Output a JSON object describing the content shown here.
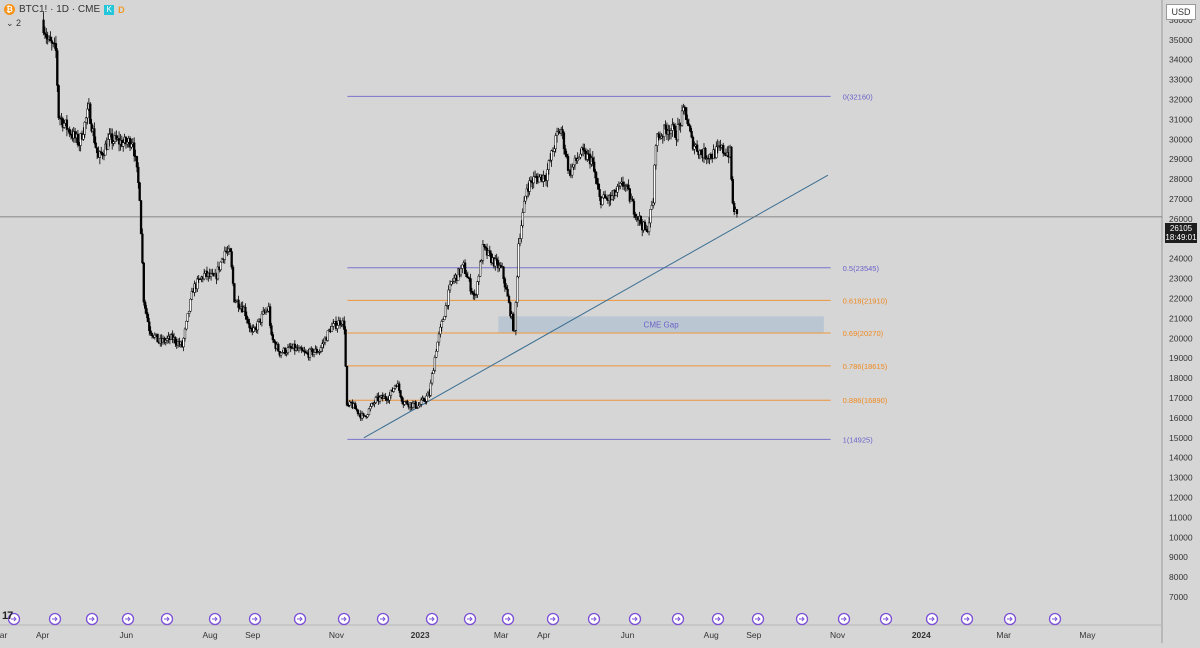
{
  "header": {
    "symbol": "BTC1! · 1D · CME",
    "badge_k": "K",
    "badge_d": "D",
    "sub": "⌄ 2",
    "currency": "USD"
  },
  "price_tag": {
    "price": "26105",
    "countdown": "18:49:01"
  },
  "chart_data": {
    "type": "candlestick",
    "title": "BTC1! · 1D · CME",
    "ylim": [
      6700,
      36600
    ],
    "yticks": [
      7000,
      8000,
      9000,
      10000,
      11000,
      12000,
      13000,
      14000,
      15000,
      16000,
      17000,
      18000,
      19000,
      20000,
      21000,
      22000,
      23000,
      24000,
      25000,
      26000,
      27000,
      28000,
      29000,
      30000,
      31000,
      32000,
      33000,
      34000,
      35000,
      36000
    ],
    "xticks": [
      "Mar",
      "Apr",
      "Jun",
      "Aug",
      "Sep",
      "Nov",
      "2023",
      "Mar",
      "Apr",
      "Jun",
      "Aug",
      "Sep",
      "Nov",
      "2024",
      "Mar",
      "May"
    ],
    "price_path": [
      [
        "2022-04-01",
        36000
      ],
      [
        "2022-04-05",
        35000
      ],
      [
        "2022-04-11",
        34400
      ],
      [
        "2022-04-13",
        31200
      ],
      [
        "2022-04-20",
        30500
      ],
      [
        "2022-04-28",
        29800
      ],
      [
        "2022-05-05",
        31500
      ],
      [
        "2022-05-09",
        30000
      ],
      [
        "2022-05-12",
        29000
      ],
      [
        "2022-05-20",
        30000
      ],
      [
        "2022-06-01",
        29800
      ],
      [
        "2022-06-06",
        30000
      ],
      [
        "2022-06-11",
        27200
      ],
      [
        "2022-06-14",
        22000
      ],
      [
        "2022-06-18",
        20500
      ],
      [
        "2022-06-25",
        19800
      ],
      [
        "2022-07-05",
        20000
      ],
      [
        "2022-07-12",
        19600
      ],
      [
        "2022-07-20",
        22500
      ],
      [
        "2022-07-28",
        23200
      ],
      [
        "2022-08-05",
        23000
      ],
      [
        "2022-08-12",
        24400
      ],
      [
        "2022-08-16",
        24200
      ],
      [
        "2022-08-19",
        22000
      ],
      [
        "2022-08-26",
        21500
      ],
      [
        "2022-09-01",
        20200
      ],
      [
        "2022-09-09",
        21200
      ],
      [
        "2022-09-13",
        21500
      ],
      [
        "2022-09-15",
        20000
      ],
      [
        "2022-09-21",
        19300
      ],
      [
        "2022-10-01",
        19500
      ],
      [
        "2022-10-10",
        19200
      ],
      [
        "2022-10-20",
        19400
      ],
      [
        "2022-10-28",
        20500
      ],
      [
        "2022-11-05",
        20900
      ],
      [
        "2022-11-07",
        20600
      ],
      [
        "2022-11-09",
        16500
      ],
      [
        "2022-11-12",
        16700
      ],
      [
        "2022-11-21",
        16000
      ],
      [
        "2022-11-30",
        16900
      ],
      [
        "2022-12-10",
        17100
      ],
      [
        "2022-12-15",
        17800
      ],
      [
        "2022-12-20",
        16800
      ],
      [
        "2022-12-31",
        16600
      ],
      [
        "2023-01-08",
        17200
      ],
      [
        "2023-01-13",
        19500
      ],
      [
        "2023-01-18",
        21000
      ],
      [
        "2023-01-24",
        22800
      ],
      [
        "2023-02-02",
        23600
      ],
      [
        "2023-02-10",
        22000
      ],
      [
        "2023-02-16",
        24500
      ],
      [
        "2023-02-22",
        24000
      ],
      [
        "2023-03-02",
        23400
      ],
      [
        "2023-03-09",
        21000
      ],
      [
        "2023-03-11",
        20200
      ],
      [
        "2023-03-14",
        24800
      ],
      [
        "2023-03-20",
        27600
      ],
      [
        "2023-03-25",
        28000
      ],
      [
        "2023-04-03",
        28200
      ],
      [
        "2023-04-11",
        30200
      ],
      [
        "2023-04-14",
        30500
      ],
      [
        "2023-04-20",
        28300
      ],
      [
        "2023-04-28",
        29300
      ],
      [
        "2023-05-06",
        29000
      ],
      [
        "2023-05-12",
        27000
      ],
      [
        "2023-05-20",
        27000
      ],
      [
        "2023-05-30",
        27800
      ],
      [
        "2023-06-06",
        26500
      ],
      [
        "2023-06-15",
        25300
      ],
      [
        "2023-06-20",
        26900
      ],
      [
        "2023-06-22",
        30000
      ],
      [
        "2023-07-01",
        30600
      ],
      [
        "2023-07-07",
        30300
      ],
      [
        "2023-07-13",
        31500
      ],
      [
        "2023-07-18",
        29900
      ],
      [
        "2023-07-25",
        29300
      ],
      [
        "2023-08-01",
        29200
      ],
      [
        "2023-08-08",
        29500
      ],
      [
        "2023-08-15",
        29300
      ],
      [
        "2023-08-17",
        26700
      ],
      [
        "2023-08-20",
        26100
      ]
    ],
    "fib_levels": [
      {
        "label": "0(32160)",
        "value": 32160,
        "color": "#6b63c9"
      },
      {
        "label": "0.5(23545)",
        "value": 23545,
        "color": "#6b63c9"
      },
      {
        "label": "0.618(21910)",
        "value": 21910,
        "color": "#f0891f"
      },
      {
        "label": "0.69(20270)",
        "value": 20270,
        "color": "#f0891f"
      },
      {
        "label": "0.786(18615)",
        "value": 18615,
        "color": "#f0891f"
      },
      {
        "label": "0.886(16890)",
        "value": 16890,
        "color": "#f0891f"
      },
      {
        "label": "1(14925)",
        "value": 14925,
        "color": "#6b63c9"
      }
    ],
    "gap": {
      "label": "CME Gap",
      "top": 21100,
      "bottom": 20300
    },
    "trendline": {
      "from": [
        "2022-11-21",
        15000
      ],
      "to": [
        "2023-10-25",
        28200
      ]
    },
    "last_price": 26105,
    "colors": {
      "candle": "#000000",
      "axis_text": "#333333",
      "fib_purple": "#6b63c9",
      "fib_orange": "#f0891f",
      "gap_fill": "#b5c3d0",
      "trend": "#3a6e92"
    }
  }
}
